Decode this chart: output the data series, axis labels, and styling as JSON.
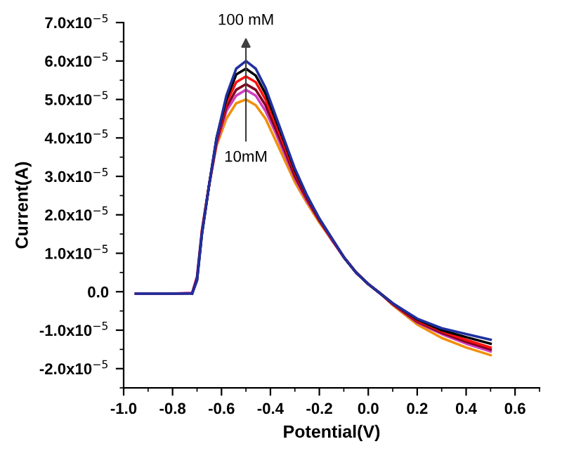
{
  "chart_data": {
    "type": "line",
    "xlabel": "Potential(V)",
    "ylabel": "Current(A)",
    "x": [
      -0.95,
      -0.8,
      -0.72,
      -0.7,
      -0.68,
      -0.65,
      -0.62,
      -0.58,
      -0.54,
      -0.5,
      -0.46,
      -0.42,
      -0.38,
      -0.34,
      -0.3,
      -0.25,
      -0.2,
      -0.15,
      -0.1,
      -0.05,
      0.0,
      0.05,
      0.1,
      0.2,
      0.3,
      0.4,
      0.5
    ],
    "series": [
      {
        "color": "#f0900a",
        "values": [
          null,
          null,
          null,
          null,
          1.6e-05,
          2.8e-05,
          3.8e-05,
          4.5e-05,
          4.9e-05,
          5e-05,
          4.85e-05,
          4.5e-05,
          3.95e-05,
          3.4e-05,
          2.85e-05,
          2.3e-05,
          1.8e-05,
          1.35e-05,
          9e-06,
          5e-06,
          2e-06,
          -5e-07,
          -3.5e-06,
          -8.5e-06,
          -1.2e-05,
          -1.45e-05,
          -1.65e-05
        ]
      },
      {
        "color": "#d040c0",
        "values": [
          -5e-07,
          -5e-07,
          -3e-07,
          4e-06,
          1.6e-05,
          2.8e-05,
          3.85e-05,
          4.7e-05,
          5.1e-05,
          5.25e-05,
          5.1e-05,
          4.7e-05,
          4.15e-05,
          3.55e-05,
          2.95e-05,
          2.35e-05,
          1.85e-05,
          1.35e-05,
          9e-06,
          5e-06,
          2e-06,
          -5e-07,
          -3.3e-06,
          -8e-06,
          -1.1e-05,
          -1.35e-05,
          -1.55e-05
        ]
      },
      {
        "color": "#800020",
        "values": [
          -5e-07,
          -5e-07,
          -4e-07,
          3.5e-06,
          1.55e-05,
          2.8e-05,
          3.9e-05,
          4.8e-05,
          5.25e-05,
          5.4e-05,
          5.25e-05,
          4.85e-05,
          4.25e-05,
          3.65e-05,
          3e-05,
          2.4e-05,
          1.85e-05,
          1.38e-05,
          9e-06,
          5e-06,
          2e-06,
          -5e-07,
          -3.2e-06,
          -7.8e-06,
          -1.07e-05,
          -1.3e-05,
          -1.5e-05
        ]
      },
      {
        "color": "#ff1010",
        "values": [
          null,
          null,
          null,
          null,
          1.55e-05,
          2.8e-05,
          3.95e-05,
          4.9e-05,
          5.45e-05,
          5.6e-05,
          5.45e-05,
          5e-05,
          4.4e-05,
          3.75e-05,
          3.1e-05,
          2.45e-05,
          1.88e-05,
          1.38e-05,
          9e-06,
          5e-06,
          2e-06,
          -5e-07,
          -3.1e-06,
          -7.5e-06,
          -1.03e-05,
          -1.25e-05,
          -1.45e-05
        ]
      },
      {
        "color": "#000000",
        "values": [
          null,
          null,
          -5e-07,
          3e-06,
          1.5e-05,
          2.8e-05,
          4e-05,
          5e-05,
          5.65e-05,
          5.8e-05,
          5.62e-05,
          5.15e-05,
          4.5e-05,
          3.85e-05,
          3.15e-05,
          2.48e-05,
          1.9e-05,
          1.4e-05,
          9e-06,
          5e-06,
          2e-06,
          -5e-07,
          -3e-06,
          -7.2e-06,
          -1e-05,
          -1.18e-05,
          -1.35e-05
        ]
      },
      {
        "color": "#2030a0",
        "values": [
          -5e-07,
          -5e-07,
          -5e-07,
          3e-06,
          1.5e-05,
          2.8e-05,
          4e-05,
          5.1e-05,
          5.8e-05,
          6e-05,
          5.8e-05,
          5.3e-05,
          4.6e-05,
          3.9e-05,
          3.2e-05,
          2.5e-05,
          1.9e-05,
          1.4e-05,
          9e-06,
          5e-06,
          2e-06,
          -5e-07,
          -3e-06,
          -7e-06,
          -9.5e-06,
          -1.1e-05,
          -1.25e-05
        ]
      }
    ],
    "annotations": [
      "100 mM",
      "10mM"
    ],
    "xlim": [
      -1.0,
      0.7
    ],
    "xticks": [
      {
        "value": -1.0,
        "label": "-1.0"
      },
      {
        "value": -0.8,
        "label": "-0.8"
      },
      {
        "value": -0.6,
        "label": "-0.6"
      },
      {
        "value": -0.4,
        "label": "-0.4"
      },
      {
        "value": -0.2,
        "label": "-0.2"
      },
      {
        "value": 0.0,
        "label": "0.0"
      },
      {
        "value": 0.2,
        "label": "0.2"
      },
      {
        "value": 0.4,
        "label": "0.4"
      },
      {
        "value": 0.6,
        "label": "0.6"
      }
    ],
    "ylim": [
      -2.5e-05,
      7e-05
    ],
    "yticks": [
      {
        "value": -2e-05,
        "label": "-2.0x10$^{−5}$"
      },
      {
        "value": -1e-05,
        "label": "-1.0x10$^{−5}$"
      },
      {
        "value": 0.0,
        "label": "0.0"
      },
      {
        "value": 1e-05,
        "label": "1.0x10$^{−5}$"
      },
      {
        "value": 2e-05,
        "label": "2.0x10$^{−5}$"
      },
      {
        "value": 3e-05,
        "label": "3.0x10$^{−5}$"
      },
      {
        "value": 4e-05,
        "label": "4.0x10$^{−5}$"
      },
      {
        "value": 5e-05,
        "label": "5.0x10$^{−5}$"
      },
      {
        "value": 6e-05,
        "label": "6.0x10$^{−5}$"
      },
      {
        "value": 7e-05,
        "label": "7.0x10$^{−5}$"
      }
    ],
    "grid": false,
    "legend": false,
    "marker": "none",
    "line_style": "solid"
  }
}
